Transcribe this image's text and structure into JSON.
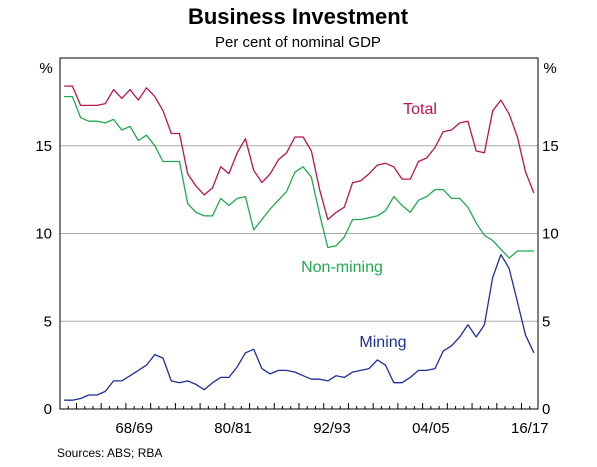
{
  "chart_data": {
    "type": "line",
    "title": "Business Investment",
    "subtitle": "Per cent of nominal GDP",
    "y_unit_left": "%",
    "y_unit_right": "%",
    "ylim": [
      0,
      20
    ],
    "yticks": [
      "0",
      "5",
      "10",
      "15"
    ],
    "xlim": [
      1960,
      2018
    ],
    "xtick_labels": [
      {
        "label": "68/69",
        "x": 1969
      },
      {
        "label": "80/81",
        "x": 1981
      },
      {
        "label": "92/93",
        "x": 1993
      },
      {
        "label": "04/05",
        "x": 2005
      },
      {
        "label": "16/17",
        "x": 2017
      }
    ],
    "grid": true,
    "source": "Sources:   ABS; RBA",
    "series": [
      {
        "name": "Total",
        "color": "#b5164f",
        "x": [
          1960.5,
          1961.5,
          1962.5,
          1963.5,
          1964.5,
          1965.5,
          1966.5,
          1967.5,
          1968.5,
          1969.5,
          1970.5,
          1971.5,
          1972.5,
          1973.5,
          1974.5,
          1975.5,
          1976.5,
          1977.5,
          1978.5,
          1979.5,
          1980.5,
          1981.5,
          1982.5,
          1983.5,
          1984.5,
          1985.5,
          1986.5,
          1987.5,
          1988.5,
          1989.5,
          1990.5,
          1991.5,
          1992.5,
          1993.5,
          1994.5,
          1995.5,
          1996.5,
          1997.5,
          1998.5,
          1999.5,
          2000.5,
          2001.5,
          2002.5,
          2003.5,
          2004.5,
          2005.5,
          2006.5,
          2007.5,
          2008.5,
          2009.5,
          2010.5,
          2011.5,
          2012.5,
          2013.5,
          2014.5,
          2015.5,
          2016.5,
          2017.5
        ],
        "values": [
          18.4,
          18.4,
          17.3,
          17.3,
          17.3,
          17.4,
          18.2,
          17.7,
          18.2,
          17.6,
          18.3,
          17.8,
          17.0,
          15.7,
          15.7,
          13.4,
          12.7,
          12.2,
          12.6,
          13.8,
          13.4,
          14.6,
          15.4,
          13.6,
          12.9,
          13.4,
          14.2,
          14.6,
          15.5,
          15.5,
          14.7,
          12.5,
          10.8,
          11.2,
          11.5,
          12.9,
          13.0,
          13.4,
          13.9,
          14.0,
          13.8,
          13.1,
          13.1,
          14.1,
          14.3,
          14.9,
          15.8,
          15.9,
          16.3,
          16.4,
          14.7,
          14.6,
          17.0,
          17.6,
          16.8,
          15.5,
          13.5,
          12.3
        ]
      },
      {
        "name": "Non-mining",
        "color": "#22a94f",
        "x": [
          1960.5,
          1961.5,
          1962.5,
          1963.5,
          1964.5,
          1965.5,
          1966.5,
          1967.5,
          1968.5,
          1969.5,
          1970.5,
          1971.5,
          1972.5,
          1973.5,
          1974.5,
          1975.5,
          1976.5,
          1977.5,
          1978.5,
          1979.5,
          1980.5,
          1981.5,
          1982.5,
          1983.5,
          1984.5,
          1985.5,
          1986.5,
          1987.5,
          1988.5,
          1989.5,
          1990.5,
          1991.5,
          1992.5,
          1993.5,
          1994.5,
          1995.5,
          1996.5,
          1997.5,
          1998.5,
          1999.5,
          2000.5,
          2001.5,
          2002.5,
          2003.5,
          2004.5,
          2005.5,
          2006.5,
          2007.5,
          2008.5,
          2009.5,
          2010.5,
          2011.5,
          2012.5,
          2013.5,
          2014.5,
          2015.5,
          2016.5,
          2017.5
        ],
        "values": [
          17.8,
          17.8,
          16.6,
          16.4,
          16.4,
          16.3,
          16.5,
          15.9,
          16.1,
          15.3,
          15.6,
          15.0,
          14.1,
          14.1,
          14.1,
          11.7,
          11.2,
          11.0,
          11.0,
          12.0,
          11.6,
          12.0,
          12.1,
          10.2,
          10.8,
          11.4,
          11.9,
          12.4,
          13.5,
          13.8,
          13.2,
          11.1,
          9.2,
          9.3,
          9.8,
          10.8,
          10.8,
          10.9,
          11.0,
          11.3,
          12.1,
          11.6,
          11.2,
          11.9,
          12.1,
          12.5,
          12.5,
          12.0,
          12.0,
          11.5,
          10.6,
          9.9,
          9.6,
          9.1,
          8.6,
          9.0,
          9.0,
          9.0
        ]
      },
      {
        "name": "Mining",
        "color": "#1f2f94",
        "x": [
          1960.5,
          1961.5,
          1962.5,
          1963.5,
          1964.5,
          1965.5,
          1966.5,
          1967.5,
          1968.5,
          1969.5,
          1970.5,
          1971.5,
          1972.5,
          1973.5,
          1974.5,
          1975.5,
          1976.5,
          1977.5,
          1978.5,
          1979.5,
          1980.5,
          1981.5,
          1982.5,
          1983.5,
          1984.5,
          1985.5,
          1986.5,
          1987.5,
          1988.5,
          1989.5,
          1990.5,
          1991.5,
          1992.5,
          1993.5,
          1994.5,
          1995.5,
          1996.5,
          1997.5,
          1998.5,
          1999.5,
          2000.5,
          2001.5,
          2002.5,
          2003.5,
          2004.5,
          2005.5,
          2006.5,
          2007.5,
          2008.5,
          2009.5,
          2010.5,
          2011.5,
          2012.5,
          2013.5,
          2014.5,
          2015.5,
          2016.5,
          2017.5
        ],
        "values": [
          0.5,
          0.5,
          0.6,
          0.8,
          0.8,
          1.0,
          1.6,
          1.6,
          1.9,
          2.2,
          2.5,
          3.1,
          2.9,
          1.6,
          1.5,
          1.6,
          1.4,
          1.1,
          1.5,
          1.8,
          1.8,
          2.4,
          3.2,
          3.4,
          2.3,
          2.0,
          2.2,
          2.2,
          2.1,
          1.9,
          1.7,
          1.7,
          1.6,
          1.9,
          1.8,
          2.1,
          2.2,
          2.3,
          2.8,
          2.5,
          1.5,
          1.5,
          1.8,
          2.2,
          2.2,
          2.3,
          3.3,
          3.6,
          4.1,
          4.8,
          4.1,
          4.8,
          7.5,
          8.8,
          8.0,
          6.1,
          4.2,
          3.2
        ]
      }
    ]
  }
}
